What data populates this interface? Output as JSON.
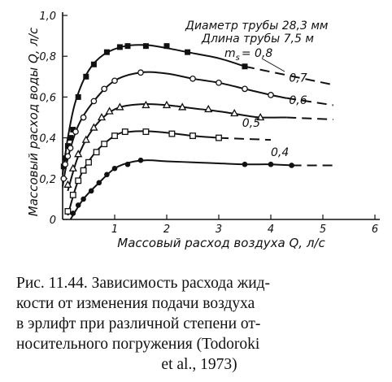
{
  "chart_data": {
    "type": "line",
    "xlabel": "Массовый расход воздуха Q, л/с",
    "ylabel": "Массовый расход воды Q, л/с",
    "xlim": [
      0,
      6
    ],
    "ylim": [
      0,
      1.0
    ],
    "x_ticks": [
      "1",
      "2",
      "3",
      "4",
      "5",
      "6"
    ],
    "y_ticks": [
      "0",
      "0,2",
      "0,4",
      "0,6",
      "0,8",
      "1,0"
    ],
    "annotations": [
      "Диаметр трубы 28,3 мм",
      "Длина трубы 7,5 м"
    ],
    "series_param_label": "m",
    "series_param_subscript": "s",
    "series_param_eq": "= 0,8",
    "grid": false,
    "series": [
      {
        "name": "0,8",
        "marker": "square-filled",
        "points": [
          [
            0.02,
            0.26
          ],
          [
            0.05,
            0.3
          ],
          [
            0.1,
            0.36
          ],
          [
            0.15,
            0.4
          ],
          [
            0.2,
            0.44
          ],
          [
            0.3,
            0.6
          ],
          [
            0.45,
            0.7
          ],
          [
            0.6,
            0.76
          ],
          [
            0.85,
            0.82
          ],
          [
            1.1,
            0.845
          ],
          [
            1.25,
            0.85
          ],
          [
            1.6,
            0.85
          ],
          [
            2.0,
            0.85
          ],
          [
            2.4,
            0.82
          ],
          [
            3.5,
            0.75
          ]
        ],
        "curve": [
          [
            0.0,
            0.22
          ],
          [
            0.1,
            0.4
          ],
          [
            0.25,
            0.58
          ],
          [
            0.5,
            0.73
          ],
          [
            0.8,
            0.81
          ],
          [
            1.2,
            0.85
          ],
          [
            1.6,
            0.855
          ],
          [
            2.0,
            0.84
          ],
          [
            2.4,
            0.82
          ],
          [
            3.0,
            0.79
          ],
          [
            3.5,
            0.75
          ]
        ],
        "dash": [
          [
            3.5,
            0.75
          ],
          [
            5.2,
            0.66
          ]
        ]
      },
      {
        "name": "0,7",
        "marker": "circle-open",
        "points": [
          [
            0.02,
            0.2
          ],
          [
            0.05,
            0.27
          ],
          [
            0.1,
            0.31
          ],
          [
            0.15,
            0.35
          ],
          [
            0.25,
            0.43
          ],
          [
            0.4,
            0.5
          ],
          [
            0.6,
            0.58
          ],
          [
            0.8,
            0.64
          ],
          [
            1.0,
            0.68
          ],
          [
            1.5,
            0.72
          ],
          [
            2.5,
            0.69
          ],
          [
            3.0,
            0.67
          ],
          [
            3.5,
            0.64
          ],
          [
            4.0,
            0.61
          ]
        ],
        "curve": [
          [
            0.0,
            0.16
          ],
          [
            0.1,
            0.3
          ],
          [
            0.3,
            0.46
          ],
          [
            0.6,
            0.58
          ],
          [
            1.0,
            0.68
          ],
          [
            1.5,
            0.72
          ],
          [
            2.0,
            0.715
          ],
          [
            2.5,
            0.69
          ],
          [
            3.0,
            0.67
          ],
          [
            3.5,
            0.64
          ],
          [
            4.0,
            0.61
          ],
          [
            4.3,
            0.595
          ]
        ],
        "dash": [
          [
            4.3,
            0.595
          ],
          [
            5.2,
            0.56
          ]
        ]
      },
      {
        "name": "0,6",
        "marker": "triangle-open",
        "points": [
          [
            0.1,
            0.17
          ],
          [
            0.2,
            0.25
          ],
          [
            0.3,
            0.32
          ],
          [
            0.45,
            0.39
          ],
          [
            0.6,
            0.45
          ],
          [
            0.75,
            0.5
          ],
          [
            0.9,
            0.53
          ],
          [
            1.1,
            0.55
          ],
          [
            1.6,
            0.56
          ],
          [
            2.0,
            0.56
          ],
          [
            2.3,
            0.55
          ],
          [
            2.8,
            0.54
          ],
          [
            3.3,
            0.52
          ],
          [
            3.8,
            0.5
          ]
        ],
        "curve": [
          [
            0.1,
            0.14
          ],
          [
            0.3,
            0.31
          ],
          [
            0.6,
            0.45
          ],
          [
            1.0,
            0.54
          ],
          [
            1.5,
            0.565
          ],
          [
            2.0,
            0.56
          ],
          [
            2.5,
            0.545
          ],
          [
            3.0,
            0.53
          ],
          [
            3.5,
            0.51
          ],
          [
            3.8,
            0.5
          ],
          [
            4.3,
            0.5
          ]
        ],
        "dash": [
          [
            4.3,
            0.5
          ],
          [
            5.2,
            0.49
          ]
        ]
      },
      {
        "name": "0,5",
        "marker": "square-open",
        "points": [
          [
            0.1,
            0.04
          ],
          [
            0.2,
            0.12
          ],
          [
            0.3,
            0.19
          ],
          [
            0.4,
            0.24
          ],
          [
            0.5,
            0.28
          ],
          [
            0.65,
            0.33
          ],
          [
            0.8,
            0.37
          ],
          [
            1.0,
            0.41
          ],
          [
            1.2,
            0.43
          ],
          [
            1.6,
            0.43
          ],
          [
            2.1,
            0.42
          ],
          [
            2.5,
            0.41
          ],
          [
            3.0,
            0.4
          ]
        ],
        "curve": [
          [
            0.1,
            0.02
          ],
          [
            0.3,
            0.19
          ],
          [
            0.6,
            0.32
          ],
          [
            1.0,
            0.41
          ],
          [
            1.3,
            0.43
          ],
          [
            1.8,
            0.43
          ],
          [
            2.5,
            0.41
          ],
          [
            3.0,
            0.4
          ]
        ],
        "dash": [
          [
            3.0,
            0.4
          ],
          [
            4.0,
            0.39
          ]
        ]
      },
      {
        "name": "0,4",
        "marker": "circle-filled",
        "points": [
          [
            0.2,
            0.03
          ],
          [
            0.3,
            0.07
          ],
          [
            0.4,
            0.1
          ],
          [
            0.55,
            0.14
          ],
          [
            0.7,
            0.18
          ],
          [
            0.85,
            0.22
          ],
          [
            1.0,
            0.25
          ],
          [
            1.25,
            0.27
          ],
          [
            1.5,
            0.29
          ],
          [
            3.5,
            0.27
          ],
          [
            4.0,
            0.27
          ],
          [
            4.4,
            0.265
          ]
        ],
        "curve": [
          [
            0.15,
            0.0
          ],
          [
            0.4,
            0.1
          ],
          [
            0.7,
            0.18
          ],
          [
            1.0,
            0.25
          ],
          [
            1.3,
            0.28
          ],
          [
            1.6,
            0.29
          ],
          [
            2.0,
            0.285
          ],
          [
            2.5,
            0.28
          ],
          [
            3.0,
            0.275
          ],
          [
            3.5,
            0.27
          ],
          [
            4.0,
            0.27
          ],
          [
            4.4,
            0.265
          ]
        ],
        "dash": [
          [
            4.4,
            0.265
          ],
          [
            5.2,
            0.265
          ]
        ]
      }
    ]
  },
  "caption": {
    "lines": [
      "Рис. 11.44. Зависимость расхода жид-",
      "кости от изменения подачи воздуха",
      "в эрлифт при различной степени от-",
      "носительного погружения   (Todoroki",
      "et al., 1973)"
    ]
  }
}
